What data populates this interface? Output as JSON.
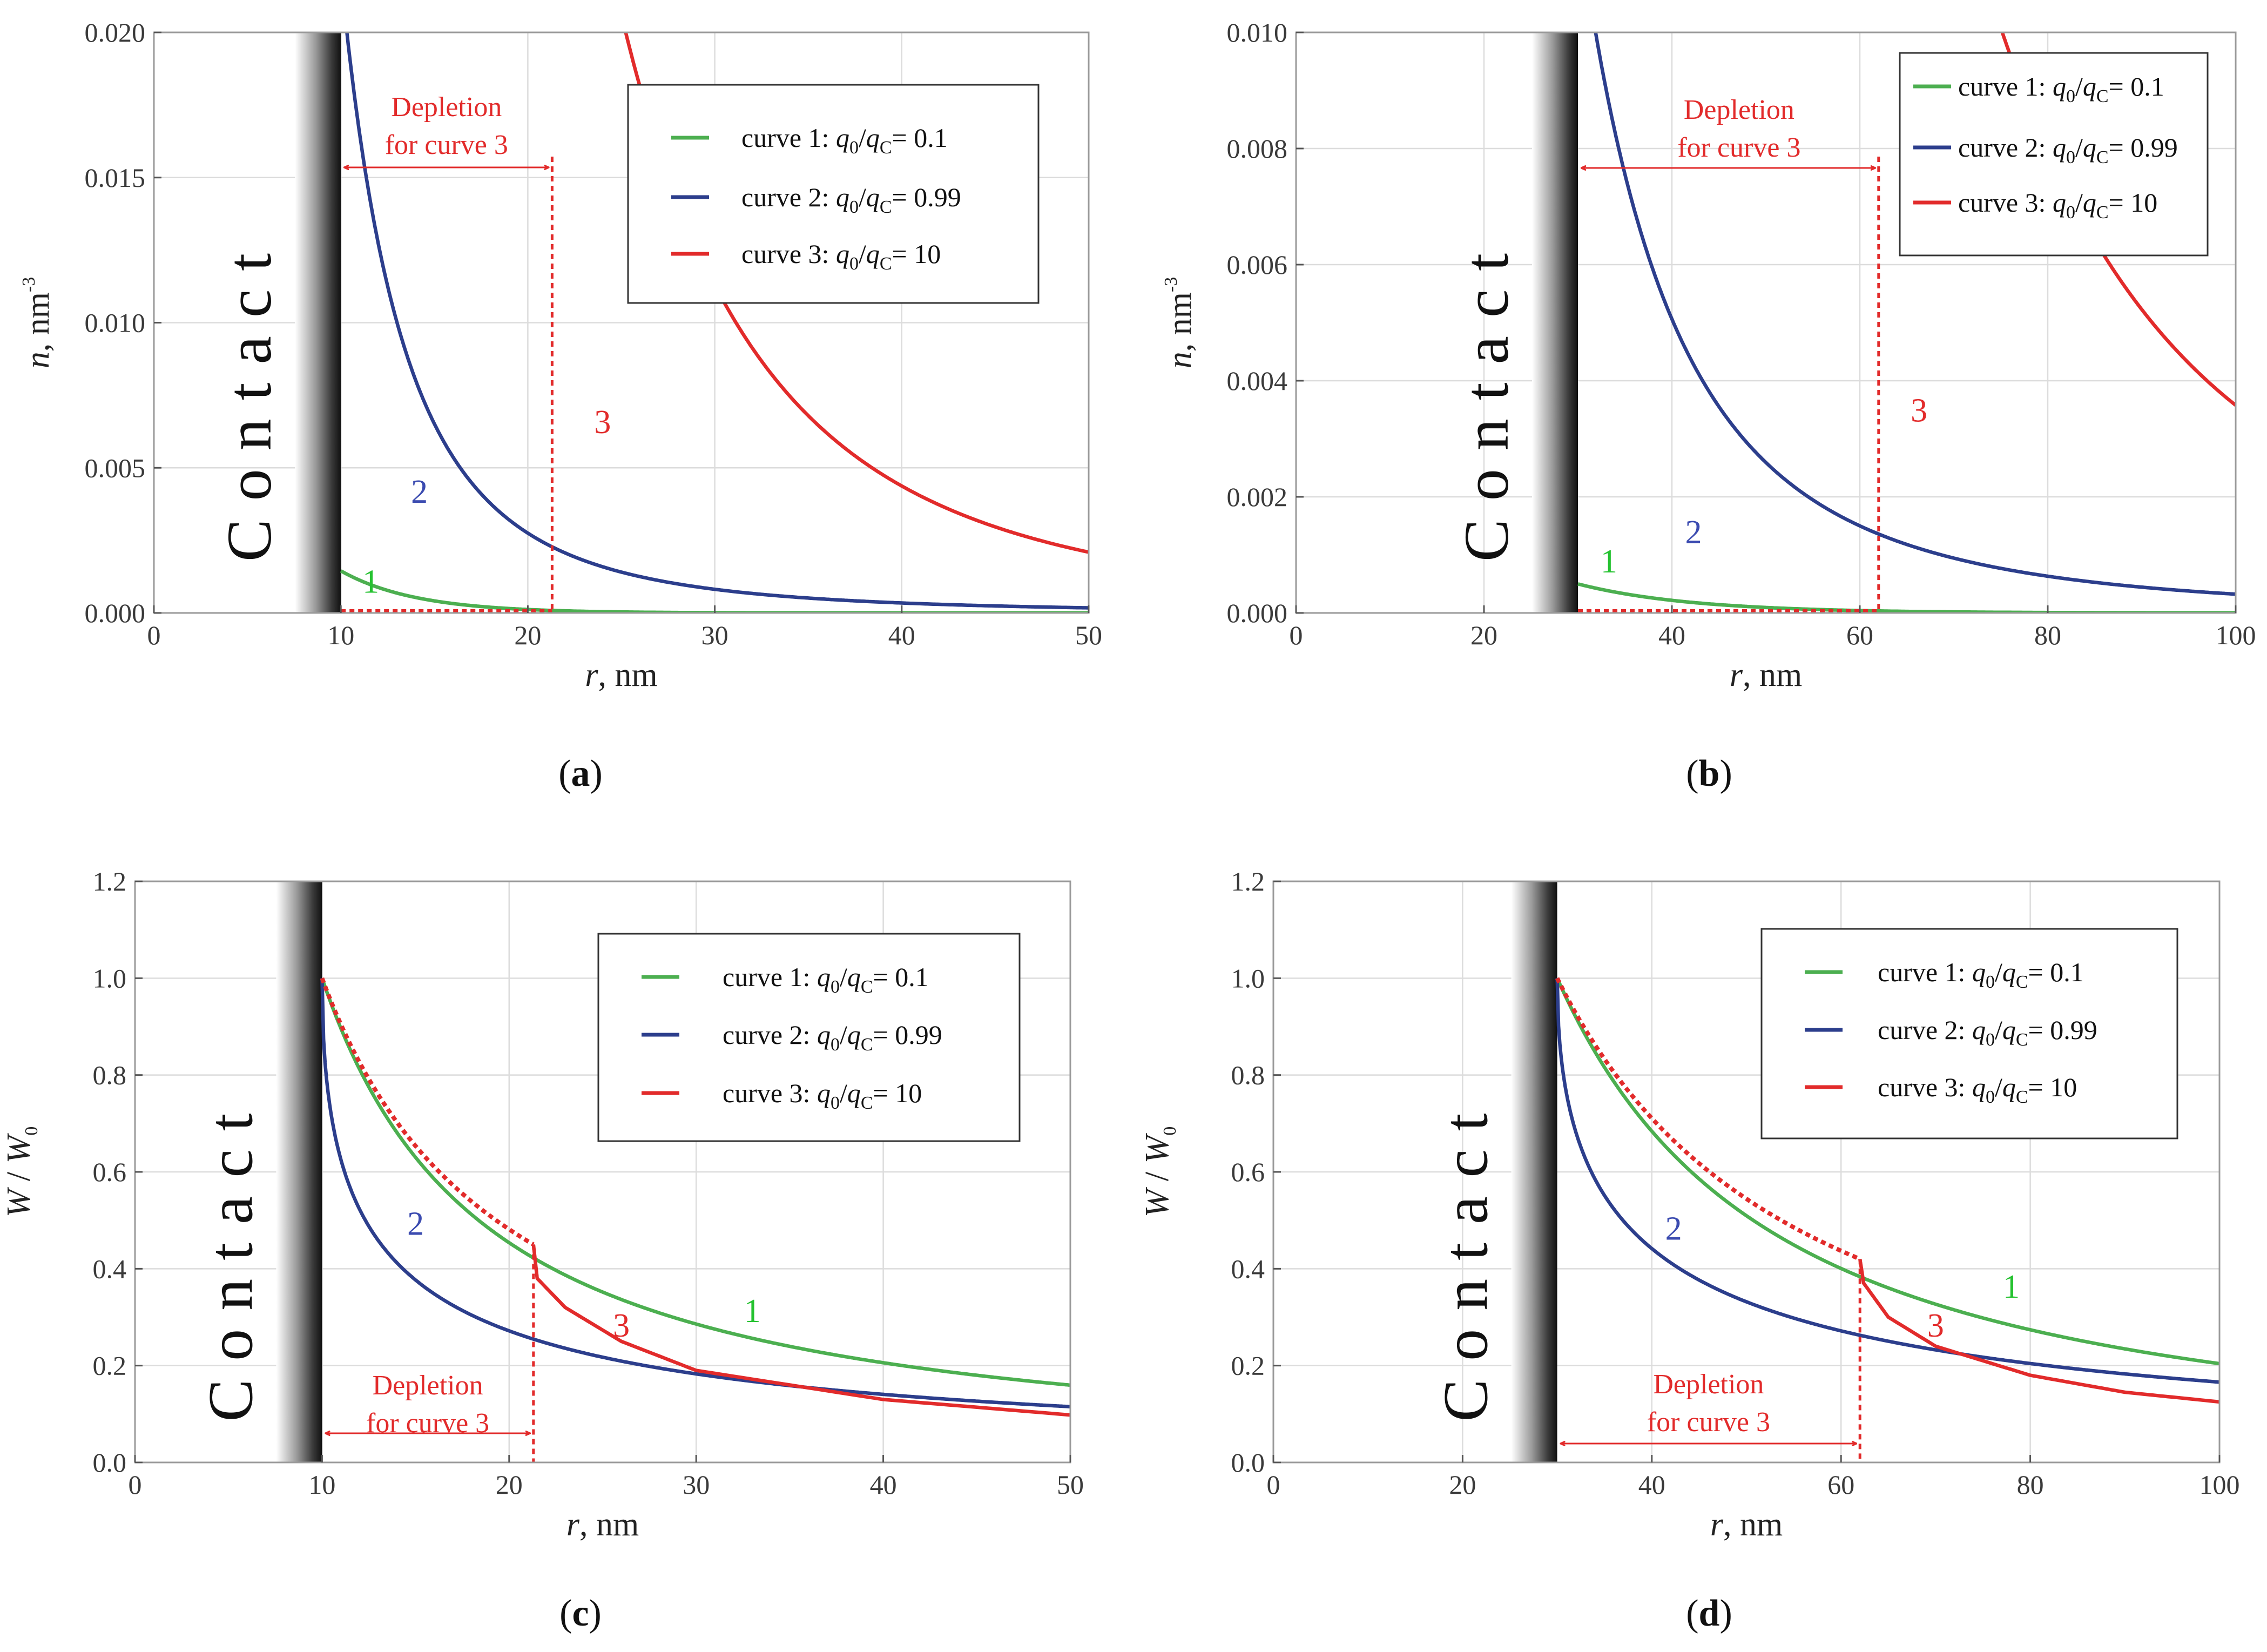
{
  "colors": {
    "curve1": "#4caf50",
    "curve2": "#2c3e8c",
    "curve3": "#e22b2b",
    "curve1_label": "#25c230",
    "curve2_label": "#3b4bb0",
    "grid": "#dcdcdc",
    "frame": "#9a9a9a"
  },
  "chart_data": [
    {
      "panel": "a",
      "caption_letter": "a",
      "type": "line",
      "contact_label": "Contact",
      "contact_r": 10,
      "xlabel_var": "r",
      "xlabel_unit": ", nm",
      "ylabel_var": "n",
      "ylabel_unit": ", nm",
      "ylabel_exp": "-3",
      "xlim": [
        0,
        50
      ],
      "ylim": [
        0,
        0.02
      ],
      "xticks": [
        "0",
        "10",
        "20",
        "30",
        "40",
        "50"
      ],
      "xtick_values": [
        0,
        10,
        20,
        30,
        40,
        50
      ],
      "yticks": [
        "0.000",
        "0.005",
        "0.010",
        "0.015",
        "0.020"
      ],
      "ytick_values": [
        0,
        0.005,
        0.01,
        0.015,
        0.02
      ],
      "legend_position": "top-right",
      "legend": [
        {
          "prefix": "curve 1: ",
          "value": "= 0.1"
        },
        {
          "prefix": "curve 2: ",
          "value": "= 0.99"
        },
        {
          "prefix": "curve 3: ",
          "value": "= 10"
        }
      ],
      "legend_ratio": {
        "q": "q",
        "sub0": "0",
        "slash": "/",
        "qc": "q",
        "subC": "C"
      },
      "depletion_label": [
        "Depletion",
        "for curve 3"
      ],
      "depletion_range": [
        10,
        21.3
      ],
      "curve_labels": [
        {
          "text": "1",
          "series": 0,
          "x": 11.6,
          "y": 0.0007
        },
        {
          "text": "2",
          "series": 1,
          "x": 14.2,
          "y": 0.0038
        },
        {
          "text": "3",
          "series": 2,
          "x": 24.0,
          "y": 0.0062
        }
      ],
      "series": [
        {
          "name": "curve 1",
          "kind": "decay",
          "r_start": 10,
          "y_start": 0.00145,
          "tau": 4
        },
        {
          "name": "curve 2",
          "kind": "power",
          "r_start": 10,
          "A": 0.022,
          "R": 10,
          "p": 3
        },
        {
          "name": "curve 3",
          "kind": "power",
          "r_start": 21.3,
          "A": 0.035,
          "R": 21.3,
          "p": 3.3,
          "dotted_zero": [
            10,
            21.3
          ]
        }
      ]
    },
    {
      "panel": "b",
      "caption_letter": "b",
      "type": "line",
      "contact_label": "Contact",
      "contact_r": 30,
      "xlabel_var": "r",
      "xlabel_unit": ", nm",
      "ylabel_var": "n",
      "ylabel_unit": ", nm",
      "ylabel_exp": "-3",
      "xlim": [
        0,
        100
      ],
      "ylim": [
        0,
        0.01
      ],
      "xticks": [
        "0",
        "20",
        "40",
        "60",
        "80",
        "100"
      ],
      "xtick_values": [
        0,
        20,
        40,
        60,
        80,
        100
      ],
      "yticks": [
        "0.000",
        "0.002",
        "0.004",
        "0.006",
        "0.008",
        "0.010"
      ],
      "ytick_values": [
        0,
        0.002,
        0.004,
        0.006,
        0.008,
        0.01
      ],
      "legend_position": "top-right",
      "legend": [
        {
          "prefix": "curve 1: ",
          "value": "= 0.1"
        },
        {
          "prefix": "curve 2: ",
          "value": "= 0.99"
        },
        {
          "prefix": "curve 3: ",
          "value": "= 10"
        }
      ],
      "legend_ratio": {
        "q": "q",
        "sub0": "0",
        "slash": "/",
        "qc": "q",
        "subC": "C"
      },
      "depletion_label": [
        "Depletion",
        "for curve 3"
      ],
      "depletion_range": [
        30,
        62
      ],
      "curve_labels": [
        {
          "text": "1",
          "series": 0,
          "x": 33.3,
          "y": 0.0007
        },
        {
          "text": "2",
          "series": 1,
          "x": 42.3,
          "y": 0.0012
        },
        {
          "text": "3",
          "series": 2,
          "x": 66.3,
          "y": 0.0033
        }
      ],
      "series": [
        {
          "name": "curve 1",
          "kind": "decay",
          "r_start": 30,
          "y_start": 0.0005,
          "tau": 12
        },
        {
          "name": "curve 2",
          "kind": "power",
          "r_start": 30,
          "A": 0.012,
          "R": 30,
          "p": 3
        },
        {
          "name": "curve 3",
          "kind": "power",
          "r_start": 62,
          "A": 0.02,
          "R": 62,
          "p": 3.6,
          "dotted_zero": [
            30,
            62
          ]
        }
      ]
    },
    {
      "panel": "c",
      "caption_letter": "c",
      "type": "line",
      "contact_label": "Contact",
      "contact_r": 10,
      "xlabel_var": "r",
      "xlabel_unit": ", nm",
      "ylabel_var": "W",
      "ylabel_mid": " / ",
      "ylabel_var2": "W",
      "ylabel_sub": "0",
      "xlim": [
        0,
        50
      ],
      "ylim": [
        0,
        1.2
      ],
      "xticks": [
        "0",
        "10",
        "20",
        "30",
        "40",
        "50"
      ],
      "xtick_values": [
        0,
        10,
        20,
        30,
        40,
        50
      ],
      "yticks": [
        "0.0",
        "0.2",
        "0.4",
        "0.6",
        "0.8",
        "1.0",
        "1.2"
      ],
      "ytick_values": [
        0,
        0.2,
        0.4,
        0.6,
        0.8,
        1.0,
        1.2
      ],
      "legend_position": "top-right",
      "legend": [
        {
          "prefix": "curve 1: ",
          "value": "= 0.1"
        },
        {
          "prefix": "curve 2: ",
          "value": "= 0.99"
        },
        {
          "prefix": "curve 3: ",
          "value": "= 10"
        }
      ],
      "legend_ratio": {
        "q": "q",
        "sub0": "0",
        "slash": "/",
        "qc": "q",
        "subC": "C"
      },
      "depletion_label": [
        "Depletion",
        "for curve 3"
      ],
      "depletion_range": [
        10,
        21.3
      ],
      "curve_labels": [
        {
          "text": "1",
          "series": 0,
          "x": 33.0,
          "y": 0.29
        },
        {
          "text": "2",
          "series": 1,
          "x": 15.0,
          "y": 0.47
        },
        {
          "text": "3",
          "series": 2,
          "x": 26.0,
          "y": 0.26
        }
      ],
      "series": [
        {
          "name": "curve 1",
          "kind": "w_power",
          "r_start": 10,
          "R": 10,
          "p": 1.14
        },
        {
          "name": "curve 2",
          "kind": "w_log",
          "r_start": 10,
          "R": 10,
          "A": 1.16,
          "b": 0.8
        },
        {
          "name": "curve 3",
          "kind": "w_depleted",
          "r_start": 10,
          "rd": 21.3,
          "R": 10,
          "p_dot": 1.04,
          "y_start": 0.45,
          "tail": [
            [
              21.3,
              0.45
            ],
            [
              21.5,
              0.38
            ],
            [
              23,
              0.32
            ],
            [
              26,
              0.25
            ],
            [
              30,
              0.19
            ],
            [
              40,
              0.13
            ],
            [
              50,
              0.098
            ]
          ]
        }
      ]
    },
    {
      "panel": "d",
      "caption_letter": "d",
      "type": "line",
      "contact_label": "Contact",
      "contact_r": 30,
      "xlabel_var": "r",
      "xlabel_unit": ", nm",
      "ylabel_var": "W",
      "ylabel_mid": " / ",
      "ylabel_var2": "W",
      "ylabel_sub": "0",
      "xlim": [
        0,
        100
      ],
      "ylim": [
        0,
        1.2
      ],
      "xticks": [
        "0",
        "20",
        "40",
        "60",
        "80",
        "100"
      ],
      "xtick_values": [
        0,
        20,
        40,
        60,
        80,
        100
      ],
      "yticks": [
        "0.0",
        "0.2",
        "0.4",
        "0.6",
        "0.8",
        "1.0",
        "1.2"
      ],
      "ytick_values": [
        0,
        0.2,
        0.4,
        0.6,
        0.8,
        1.0,
        1.2
      ],
      "legend_position": "top-right",
      "legend": [
        {
          "prefix": "curve 1: ",
          "value": "= 0.1"
        },
        {
          "prefix": "curve 2: ",
          "value": "= 0.99"
        },
        {
          "prefix": "curve 3: ",
          "value": "= 10"
        }
      ],
      "legend_ratio": {
        "q": "q",
        "sub0": "0",
        "slash": "/",
        "qc": "q",
        "subC": "C"
      },
      "depletion_label": [
        "Depletion",
        "for curve 3"
      ],
      "depletion_range": [
        30,
        62
      ],
      "curve_labels": [
        {
          "text": "1",
          "series": 0,
          "x": 78.0,
          "y": 0.34
        },
        {
          "text": "2",
          "series": 1,
          "x": 42.3,
          "y": 0.46
        },
        {
          "text": "3",
          "series": 2,
          "x": 70.0,
          "y": 0.26
        }
      ],
      "series": [
        {
          "name": "curve 1",
          "kind": "w_power",
          "r_start": 30,
          "R": 30,
          "p": 1.32
        },
        {
          "name": "curve 2",
          "kind": "w_log",
          "r_start": 30,
          "R": 30,
          "A": 1.16,
          "b": 0.8
        },
        {
          "name": "curve 3",
          "kind": "w_depleted",
          "r_start": 30,
          "rd": 62,
          "R": 30,
          "p_dot": 1.18,
          "y_start": 0.42,
          "tail": [
            [
              62,
              0.42
            ],
            [
              62.4,
              0.37
            ],
            [
              65,
              0.3
            ],
            [
              70,
              0.24
            ],
            [
              80,
              0.18
            ],
            [
              90,
              0.145
            ],
            [
              100,
              0.125
            ]
          ]
        }
      ]
    }
  ]
}
